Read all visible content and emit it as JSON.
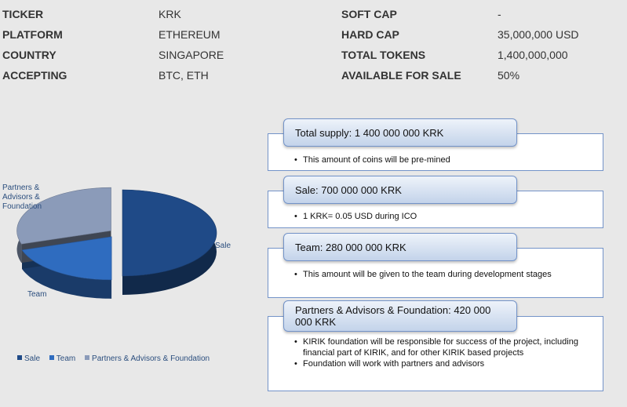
{
  "stats": [
    {
      "label": "TICKER",
      "value": "KRK",
      "label2": "SOFT CAP",
      "value2": "-"
    },
    {
      "label": "PLATFORM",
      "value": "ETHEREUM",
      "label2": "HARD CAP",
      "value2": "35,000,000 USD"
    },
    {
      "label": "COUNTRY",
      "value": "SINGAPORE",
      "label2": "TOTAL TOKENS",
      "value2": "1,400,000,000"
    },
    {
      "label": "ACCEPTING",
      "value": "BTC, ETH",
      "label2": "AVAILABLE FOR SALE",
      "value2": "50%"
    }
  ],
  "chart_data": {
    "type": "pie",
    "title": "",
    "categories": [
      "Sale",
      "Team",
      "Partners & Advisors & Foundation"
    ],
    "values": [
      50,
      20,
      30
    ],
    "colors": [
      "#1f4a87",
      "#2f6cbf",
      "#8b9bb9"
    ],
    "legend_position": "bottom",
    "slice_labels": [
      "Sale",
      "Team",
      "Partners & Advisors & Foundation"
    ]
  },
  "cards": [
    {
      "title": "Total supply: 1 400 000 000 KRK",
      "bullets": [
        "This amount of coins will be pre-mined"
      ]
    },
    {
      "title": "Sale: 700 000 000 KRK",
      "bullets": [
        "1 KRK= 0.05 USD during ICO"
      ]
    },
    {
      "title": "Team: 280 000 000 KRK",
      "bullets": [
        "This amount will be given to the team during development stages"
      ]
    },
    {
      "title": "Partners & Advisors & Foundation: 420 000 000 KRK",
      "bullets": [
        "KIRIK foundation will be responsible for success of the project, including financial part of KIRIK, and for other KIRIK based projects",
        "Foundation will work with partners and advisors"
      ]
    }
  ]
}
